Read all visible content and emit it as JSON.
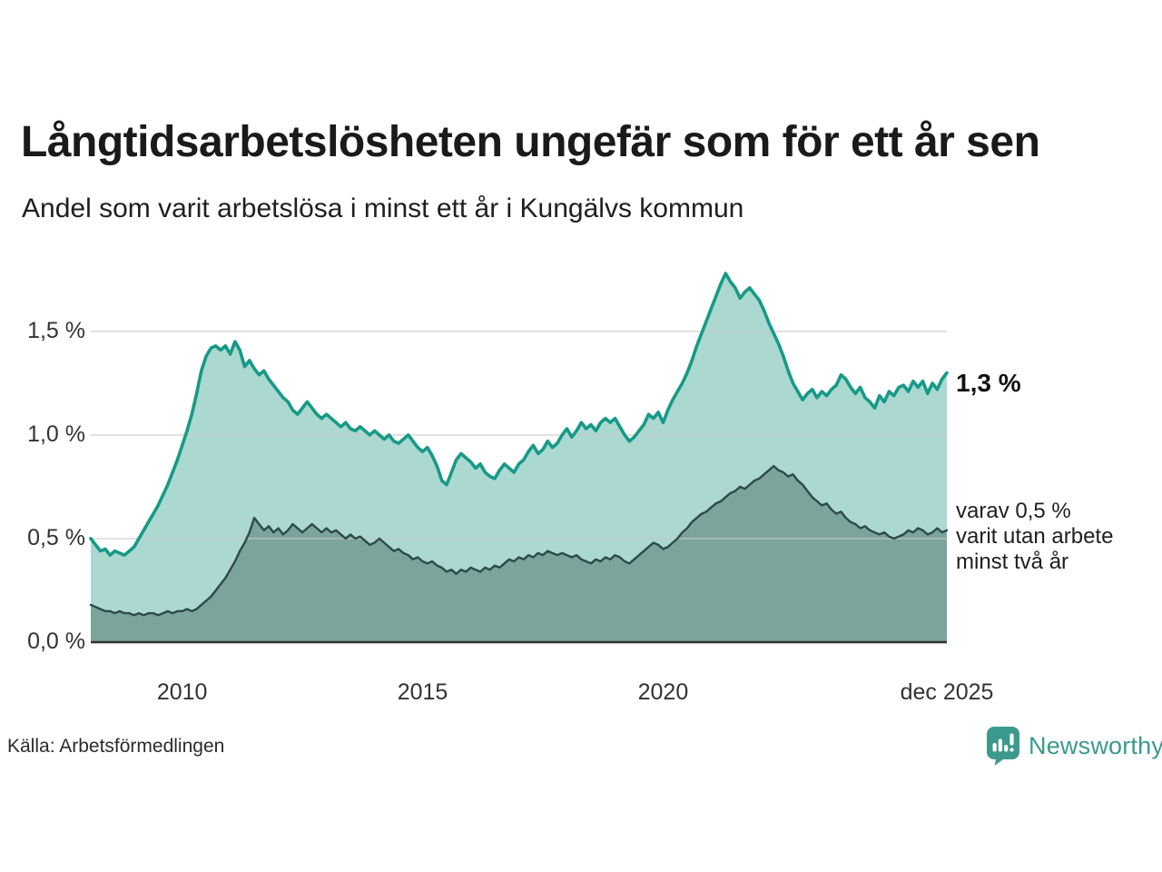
{
  "chart_data": {
    "type": "area",
    "title": "Långtidsarbetslösheten ungefär som för ett år sen",
    "subtitle": "Andel som varit arbetslösa i minst ett år i Kungälvs kommun",
    "source": "Källa: Arbetsförmedlingen",
    "legend_position": "right-annotations",
    "grid": "horizontal",
    "x_axis": {
      "range": [
        2008.1,
        2025.9
      ],
      "ticks": [
        {
          "label": "2010",
          "value": 2010
        },
        {
          "label": "2015",
          "value": 2015
        },
        {
          "label": "2020",
          "value": 2020
        },
        {
          "label": "dec 2025",
          "value": 2025.9
        }
      ]
    },
    "y_axis": {
      "range": [
        0,
        1.85
      ],
      "unit": "%",
      "ticks": [
        {
          "label": "0,0 %",
          "value": 0
        },
        {
          "label": "0,5 %",
          "value": 0.5
        },
        {
          "label": "1,0 %",
          "value": 1.0
        },
        {
          "label": "1,5 %",
          "value": 1.5
        }
      ]
    },
    "series": [
      {
        "name": "Andel arbetslösa minst ett år",
        "line_color": "#169a87",
        "fill_color": "#abd8d0",
        "line_width": 3.6,
        "start": 2008.1,
        "step": 0.1,
        "latest_value_pct": 1.3,
        "values": [
          0.5,
          0.47,
          0.44,
          0.45,
          0.42,
          0.44,
          0.43,
          0.42,
          0.44,
          0.46,
          0.5,
          0.54,
          0.58,
          0.62,
          0.66,
          0.71,
          0.76,
          0.82,
          0.88,
          0.95,
          1.02,
          1.1,
          1.2,
          1.31,
          1.38,
          1.42,
          1.43,
          1.41,
          1.43,
          1.39,
          1.45,
          1.41,
          1.33,
          1.36,
          1.32,
          1.29,
          1.31,
          1.27,
          1.24,
          1.21,
          1.18,
          1.16,
          1.12,
          1.1,
          1.13,
          1.16,
          1.13,
          1.1,
          1.08,
          1.1,
          1.08,
          1.06,
          1.04,
          1.06,
          1.03,
          1.02,
          1.04,
          1.02,
          1.0,
          1.02,
          1.0,
          0.98,
          1.0,
          0.97,
          0.96,
          0.98,
          1.0,
          0.97,
          0.94,
          0.92,
          0.94,
          0.9,
          0.85,
          0.78,
          0.76,
          0.82,
          0.88,
          0.91,
          0.89,
          0.87,
          0.84,
          0.86,
          0.82,
          0.8,
          0.79,
          0.83,
          0.86,
          0.84,
          0.82,
          0.86,
          0.88,
          0.92,
          0.95,
          0.91,
          0.93,
          0.97,
          0.94,
          0.96,
          1.0,
          1.03,
          0.99,
          1.02,
          1.06,
          1.03,
          1.05,
          1.02,
          1.06,
          1.08,
          1.06,
          1.08,
          1.04,
          1.0,
          0.97,
          0.99,
          1.02,
          1.05,
          1.1,
          1.08,
          1.11,
          1.06,
          1.12,
          1.17,
          1.21,
          1.25,
          1.3,
          1.36,
          1.43,
          1.49,
          1.55,
          1.61,
          1.67,
          1.73,
          1.78,
          1.74,
          1.71,
          1.66,
          1.69,
          1.71,
          1.68,
          1.65,
          1.6,
          1.54,
          1.49,
          1.44,
          1.38,
          1.31,
          1.25,
          1.21,
          1.17,
          1.2,
          1.22,
          1.18,
          1.21,
          1.19,
          1.22,
          1.24,
          1.29,
          1.27,
          1.23,
          1.2,
          1.23,
          1.18,
          1.16,
          1.13,
          1.19,
          1.16,
          1.21,
          1.19,
          1.23,
          1.24,
          1.21,
          1.26,
          1.23,
          1.26,
          1.2,
          1.25,
          1.22,
          1.27,
          1.3
        ]
      },
      {
        "name": "Varav utan arbete minst två år",
        "line_color": "#2c4b47",
        "fill_color": "#7aa49c",
        "line_width": 2.4,
        "start": 2008.1,
        "step": 0.1,
        "latest_value_pct": 0.5,
        "values": [
          0.18,
          0.17,
          0.16,
          0.15,
          0.15,
          0.14,
          0.15,
          0.14,
          0.14,
          0.13,
          0.14,
          0.13,
          0.14,
          0.14,
          0.13,
          0.14,
          0.15,
          0.14,
          0.15,
          0.15,
          0.16,
          0.15,
          0.16,
          0.18,
          0.2,
          0.22,
          0.25,
          0.28,
          0.31,
          0.35,
          0.39,
          0.44,
          0.48,
          0.53,
          0.6,
          0.57,
          0.54,
          0.56,
          0.53,
          0.55,
          0.52,
          0.54,
          0.57,
          0.55,
          0.53,
          0.55,
          0.57,
          0.55,
          0.53,
          0.55,
          0.53,
          0.54,
          0.52,
          0.5,
          0.52,
          0.5,
          0.51,
          0.49,
          0.47,
          0.48,
          0.5,
          0.48,
          0.46,
          0.44,
          0.45,
          0.43,
          0.42,
          0.4,
          0.41,
          0.39,
          0.38,
          0.39,
          0.37,
          0.36,
          0.34,
          0.35,
          0.33,
          0.35,
          0.34,
          0.36,
          0.35,
          0.34,
          0.36,
          0.35,
          0.37,
          0.36,
          0.38,
          0.4,
          0.39,
          0.41,
          0.4,
          0.42,
          0.41,
          0.43,
          0.42,
          0.44,
          0.43,
          0.42,
          0.43,
          0.42,
          0.41,
          0.42,
          0.4,
          0.39,
          0.38,
          0.4,
          0.39,
          0.41,
          0.4,
          0.42,
          0.41,
          0.39,
          0.38,
          0.4,
          0.42,
          0.44,
          0.46,
          0.48,
          0.47,
          0.45,
          0.46,
          0.48,
          0.5,
          0.53,
          0.55,
          0.58,
          0.6,
          0.62,
          0.63,
          0.65,
          0.67,
          0.68,
          0.7,
          0.72,
          0.73,
          0.75,
          0.74,
          0.76,
          0.78,
          0.79,
          0.81,
          0.83,
          0.85,
          0.83,
          0.82,
          0.8,
          0.81,
          0.78,
          0.76,
          0.73,
          0.7,
          0.68,
          0.66,
          0.67,
          0.64,
          0.62,
          0.63,
          0.6,
          0.58,
          0.57,
          0.55,
          0.56,
          0.54,
          0.53,
          0.52,
          0.53,
          0.51,
          0.5,
          0.51,
          0.52,
          0.54,
          0.53,
          0.55,
          0.54,
          0.52,
          0.53,
          0.55,
          0.53,
          0.54
        ]
      }
    ],
    "annotations": {
      "latest_value": "1,3 %",
      "secondary": [
        "varav 0,5 %",
        "varit utan arbete",
        "minst två år"
      ]
    }
  },
  "branding": {
    "name": "Newsworthy",
    "color": "#3b9a8d"
  },
  "colors": {
    "grid": "#c9c9c9",
    "baseline": "#333333",
    "title_text": "#1a1a1a",
    "axis_text": "#333333"
  }
}
